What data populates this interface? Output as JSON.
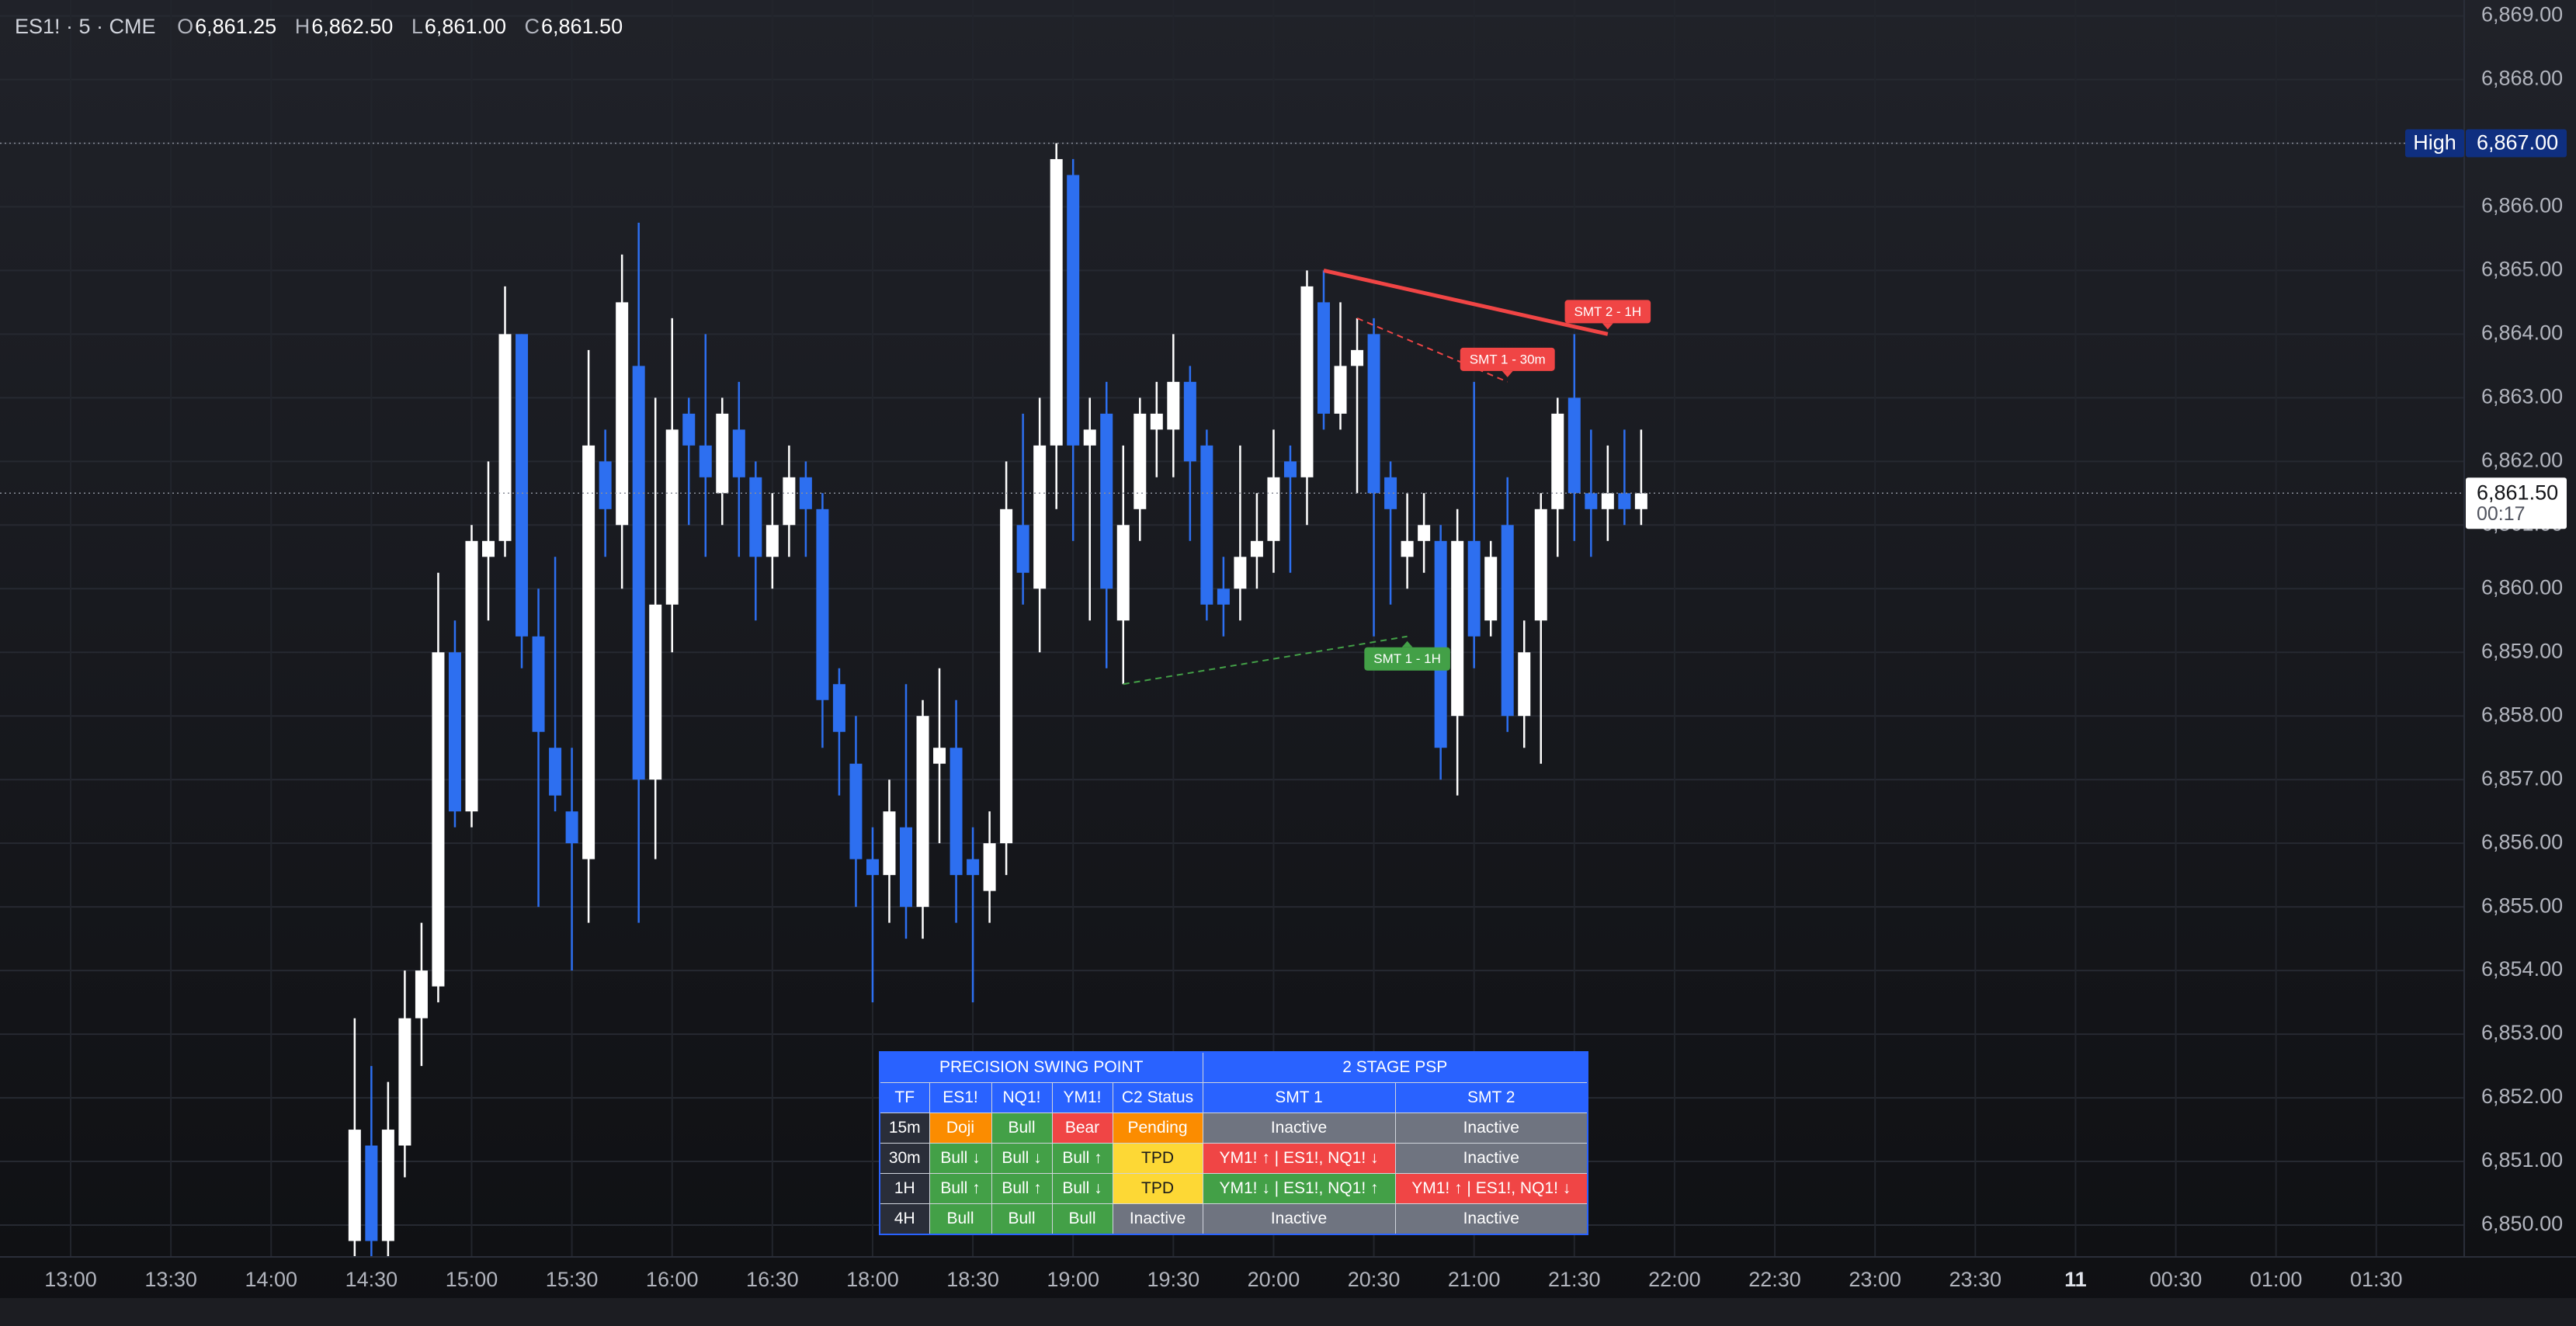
{
  "header": {
    "symbol": "ES1! · 5 · CME",
    "open_label": "O",
    "open": "6,861.25",
    "high_label": "H",
    "high": "6,862.50",
    "low_label": "L",
    "low": "6,861.00",
    "close_label": "C",
    "close": "6,861.50"
  },
  "chart_data": {
    "type": "candlestick",
    "categories": [
      "13:00",
      null,
      null,
      null,
      null,
      null,
      "13:30",
      null,
      null,
      null,
      null,
      null,
      "14:00",
      null,
      null,
      null,
      null,
      null,
      "14:30",
      null,
      null,
      null,
      null,
      null,
      "15:00",
      null,
      null,
      null,
      null,
      null,
      "15:30",
      null,
      null,
      null,
      null,
      null,
      "16:00",
      null,
      null,
      null,
      null,
      null,
      "16:30",
      null,
      null,
      null,
      null,
      null,
      "18:00",
      null,
      null,
      null,
      null,
      null,
      "18:30",
      null,
      null,
      null,
      null,
      null,
      "19:00",
      null,
      null,
      null,
      null,
      null,
      "19:30",
      null,
      null,
      null,
      null,
      null,
      "20:00",
      null,
      null,
      null,
      null,
      null,
      "20:30",
      null,
      null,
      null,
      null,
      null,
      "21:00",
      null,
      null,
      null,
      null,
      null,
      "21:30",
      null,
      null,
      null,
      null,
      null,
      "22:00",
      null,
      null,
      null,
      null,
      null,
      "22:30",
      null,
      null,
      null,
      null,
      null,
      "23:00",
      null,
      null,
      null,
      null,
      null,
      "23:30",
      null,
      null,
      null,
      null,
      null,
      "11",
      null,
      null,
      null,
      null,
      null,
      "00:30",
      null,
      null,
      null,
      null,
      null,
      "01:00",
      null,
      null,
      null,
      null,
      null,
      "01:30",
      null,
      null,
      null,
      null,
      null
    ],
    "open": [
      null,
      null,
      null,
      null,
      null,
      null,
      null,
      null,
      null,
      null,
      null,
      null,
      null,
      null,
      null,
      null,
      null,
      6849.75,
      6851.25,
      6849.75,
      6851.25,
      6853.25,
      6853.75,
      6859,
      6856.5,
      6860.5,
      6860.75,
      6864,
      6859.25,
      6857.5,
      6856.5,
      6855.75,
      6862,
      6861,
      6863.5,
      6857,
      6859.75,
      6862.75,
      6862.25,
      6861.5,
      6862.5,
      6861.75,
      6860.5,
      6861,
      6861.75,
      6861.25,
      6858.5,
      6857.25,
      6855.75,
      6855.5,
      6856.25,
      6855,
      6857.25,
      6857.5,
      6855.75,
      6855.25,
      6856,
      6861,
      6860,
      6862.25,
      6866.5,
      6862.25,
      6862.75,
      6859.5,
      6861.25,
      6862.5,
      6862.5,
      6863.25,
      6862.25,
      6860,
      6860,
      6860.5,
      6860.75,
      6862,
      6861.75,
      6864.5,
      6862.75,
      6863.5,
      6864,
      6861.75,
      6860.5,
      6860.75,
      6860.75,
      6858,
      6860.75,
      6859.5,
      6861,
      6858,
      6859.5,
      6861.25,
      6863,
      6861.5,
      6861.25,
      6861.5,
      6861.25,
      null,
      null,
      null,
      null,
      null,
      null,
      null,
      null,
      null,
      null,
      null,
      null,
      null,
      null,
      null,
      null,
      null,
      null,
      null,
      null,
      null,
      null,
      null,
      null,
      null,
      null,
      null,
      null,
      null,
      null,
      null,
      null,
      null,
      null,
      null,
      null,
      null,
      null,
      null,
      null,
      null,
      null,
      null,
      null,
      null,
      null,
      null,
      null,
      null
    ],
    "high": [
      null,
      null,
      null,
      null,
      null,
      null,
      null,
      null,
      null,
      null,
      null,
      null,
      null,
      null,
      null,
      null,
      null,
      6853.25,
      6852.5,
      6852.25,
      6854,
      6854.75,
      6860.25,
      6859.5,
      6861,
      6862,
      6864.75,
      6864,
      6860,
      6860.5,
      6857.5,
      6863.75,
      6862.5,
      6865.25,
      6865.75,
      6863,
      6864.25,
      6863,
      6864,
      6863,
      6863.25,
      6862,
      6861.5,
      6862.25,
      6862,
      6861.5,
      6858.75,
      6858,
      6856.25,
      6857,
      6858.5,
      6858.25,
      6858.75,
      6858.25,
      6856.25,
      6856.5,
      6862,
      6862.75,
      6863,
      6867,
      6866.75,
      6863,
      6863.25,
      6862.25,
      6863,
      6863.25,
      6864,
      6863.5,
      6862.5,
      6860.5,
      6862.25,
      6861.5,
      6862.5,
      6862.25,
      6865,
      6865,
      6864.5,
      6864.25,
      6864.25,
      6862,
      6861.5,
      6861.5,
      6861,
      6861.25,
      6863.25,
      6860.75,
      6861.75,
      6859.5,
      6861.5,
      6863,
      6864,
      6862.5,
      6862.25,
      6862.5,
      6862.5,
      null,
      null,
      null,
      null,
      null,
      null,
      null,
      null,
      null,
      null,
      null,
      null,
      null,
      null,
      null,
      null,
      null,
      null,
      null,
      null,
      null,
      null,
      null,
      null,
      null,
      null,
      null,
      null,
      null,
      null,
      null,
      null,
      null,
      null,
      null,
      null,
      null,
      null,
      null,
      null,
      null,
      null,
      null,
      null,
      null,
      null,
      null,
      null,
      null
    ],
    "low": [
      null,
      null,
      null,
      null,
      null,
      null,
      null,
      null,
      null,
      null,
      null,
      null,
      null,
      null,
      null,
      null,
      null,
      6849.5,
      6849.5,
      6849.5,
      6850.75,
      6852.5,
      6853.5,
      6856.25,
      6856.25,
      6859.5,
      6860.5,
      6858.75,
      6855,
      6856.5,
      6854,
      6854.75,
      6860.5,
      6860,
      6854.75,
      6855.75,
      6859,
      6861,
      6860.5,
      6861,
      6860.5,
      6859.5,
      6860,
      6860.5,
      6860.5,
      6857.5,
      6856.75,
      6855,
      6853.5,
      6854.75,
      6854.5,
      6854.5,
      6856,
      6854.75,
      6853.5,
      6854.75,
      6855.5,
      6859.75,
      6859,
      6861.25,
      6860.75,
      6859.5,
      6858.75,
      6858.5,
      6860.75,
      6861.75,
      6861.75,
      6860.75,
      6859.5,
      6859.25,
      6859.5,
      6860,
      6860.25,
      6860.25,
      6861,
      6862.5,
      6862.5,
      6861.5,
      6859.25,
      6859.75,
      6860,
      6860.25,
      6857,
      6856.75,
      6858.75,
      6859.25,
      6857.75,
      6857.5,
      6857.25,
      6860.5,
      6860.75,
      6860.5,
      6860.75,
      6861,
      6861,
      null,
      null,
      null,
      null,
      null,
      null,
      null,
      null,
      null,
      null,
      null,
      null,
      null,
      null,
      null,
      null,
      null,
      null,
      null,
      null,
      null,
      null,
      null,
      null,
      null,
      null,
      null,
      null,
      null,
      null,
      null,
      null,
      null,
      null,
      null,
      null,
      null,
      null,
      null,
      null,
      null,
      null,
      null,
      null,
      null,
      null,
      null,
      null,
      null
    ],
    "close": [
      null,
      null,
      null,
      null,
      null,
      null,
      null,
      null,
      null,
      null,
      null,
      null,
      null,
      null,
      null,
      null,
      null,
      6851.5,
      6849.75,
      6851.5,
      6853.25,
      6854,
      6859,
      6856.5,
      6860.75,
      6860.75,
      6864,
      6859.25,
      6857.75,
      6856.75,
      6856,
      6862.25,
      6861.25,
      6864.5,
      6857,
      6859.75,
      6862.5,
      6862.25,
      6861.75,
      6862.75,
      6861.75,
      6860.5,
      6861,
      6861.75,
      6861.25,
      6858.25,
      6857.75,
      6855.75,
      6855.5,
      6856.5,
      6855,
      6858,
      6857.5,
      6855.5,
      6855.5,
      6856,
      6861.25,
      6860.25,
      6862.25,
      6866.75,
      6862.25,
      6862.5,
      6860,
      6861,
      6862.75,
      6862.75,
      6863.25,
      6862,
      6859.75,
      6859.75,
      6860.5,
      6860.75,
      6861.75,
      6861.75,
      6864.75,
      6862.75,
      6863.5,
      6863.75,
      6861.5,
      6861.25,
      6860.75,
      6861,
      6857.5,
      6860.75,
      6859.25,
      6860.5,
      6858,
      6859,
      6861.25,
      6862.75,
      6861.5,
      6861.25,
      6861.5,
      6861.25,
      6861.5,
      null,
      null,
      null,
      null,
      null,
      null,
      null,
      null,
      null,
      null,
      null,
      null,
      null,
      null,
      null,
      null,
      null,
      null,
      null,
      null,
      null,
      null,
      null,
      null,
      null,
      null,
      null,
      null,
      null,
      null,
      null,
      null,
      null,
      null,
      null,
      null,
      null,
      null,
      null,
      null,
      null,
      null,
      null,
      null,
      null,
      null,
      null,
      null,
      null
    ],
    "up_color": "#ffffff",
    "down_color": "#2d6ff0",
    "ylim": [
      6849.5,
      6869.25
    ],
    "yticks": [
      {
        "value": 6850,
        "label": "6,850.00"
      },
      {
        "value": 6851,
        "label": "6,851.00"
      },
      {
        "value": 6852,
        "label": "6,852.00"
      },
      {
        "value": 6853,
        "label": "6,853.00"
      },
      {
        "value": 6854,
        "label": "6,854.00"
      },
      {
        "value": 6855,
        "label": "6,855.00"
      },
      {
        "value": 6856,
        "label": "6,856.00"
      },
      {
        "value": 6857,
        "label": "6,857.00"
      },
      {
        "value": 6858,
        "label": "6,858.00"
      },
      {
        "value": 6859,
        "label": "6,859.00"
      },
      {
        "value": 6860,
        "label": "6,860.00"
      },
      {
        "value": 6861,
        "label": "6,861.00"
      },
      {
        "value": 6862,
        "label": "6,862.00"
      },
      {
        "value": 6863,
        "label": "6,863.00"
      },
      {
        "value": 6864,
        "label": "6,864.00"
      },
      {
        "value": 6865,
        "label": "6,865.00"
      },
      {
        "value": 6866,
        "label": "6,866.00"
      },
      {
        "value": 6867,
        "label": "6,867.00"
      },
      {
        "value": 6868,
        "label": "6,868.00"
      },
      {
        "value": 6869,
        "label": "6,869.00"
      }
    ],
    "grid": true,
    "price_lines": [
      {
        "label": "High",
        "value": 6867,
        "value_label": "6,867.00",
        "color": "#0f2f80"
      },
      {
        "value": 6861.5,
        "value_label": "6,861.50",
        "countdown": "00:17",
        "color": "#ffffff"
      }
    ],
    "annotations": [
      {
        "label": "SMT 2 - 1H",
        "color": "#f04545",
        "dashed": false,
        "label_position": "above",
        "x": [
          "20:15",
          "21:40"
        ],
        "y": [
          6865,
          6864
        ]
      },
      {
        "label": "SMT 1 - 30m",
        "color": "#f04545",
        "dashed": true,
        "label_position": "above",
        "x": [
          "20:25",
          "21:10"
        ],
        "y": [
          6864.25,
          6863.25
        ]
      },
      {
        "label": "SMT 1 - 1H",
        "color": "#43a047",
        "dashed": true,
        "label_position": "below",
        "x": [
          "19:15",
          "20:40"
        ],
        "y": [
          6858.5,
          6859.25
        ]
      }
    ]
  },
  "table": {
    "groups": [
      "PRECISION SWING POINT",
      "2 STAGE PSP"
    ],
    "columns": [
      "TF",
      "ES1!",
      "NQ1!",
      "YM1!",
      "C2 Status",
      "SMT 1",
      "SMT 2"
    ],
    "rows": [
      [
        {
          "text": "15m",
          "color": "#2a2e39"
        },
        {
          "text": "Doji",
          "color": "#fb8c00"
        },
        {
          "text": "Bull",
          "color": "#43a047"
        },
        {
          "text": "Bear",
          "color": "#f04545"
        },
        {
          "text": "Pending",
          "color": "#fb8c00"
        },
        {
          "text": "Inactive",
          "color": "#6f7480"
        },
        {
          "text": "Inactive",
          "color": "#6f7480"
        }
      ],
      [
        {
          "text": "30m",
          "color": "#2a2e39"
        },
        {
          "text": "Bull ↓",
          "color": "#43a047"
        },
        {
          "text": "Bull ↓",
          "color": "#43a047"
        },
        {
          "text": "Bull ↑",
          "color": "#43a047"
        },
        {
          "text": "TPD",
          "color": "#fdd835",
          "text_color": "#1a1a1a"
        },
        {
          "text": "YM1! ↑  |  ES1!, NQ1! ↓",
          "color": "#f04545"
        },
        {
          "text": "Inactive",
          "color": "#6f7480"
        }
      ],
      [
        {
          "text": "1H",
          "color": "#2a2e39"
        },
        {
          "text": "Bull ↑",
          "color": "#43a047"
        },
        {
          "text": "Bull ↑",
          "color": "#43a047"
        },
        {
          "text": "Bull ↓",
          "color": "#43a047"
        },
        {
          "text": "TPD",
          "color": "#fdd835",
          "text_color": "#1a1a1a"
        },
        {
          "text": "YM1! ↓  |  ES1!, NQ1! ↑",
          "color": "#43a047"
        },
        {
          "text": "YM1! ↑  |  ES1!, NQ1! ↓",
          "color": "#f04545"
        }
      ],
      [
        {
          "text": "4H",
          "color": "#2a2e39"
        },
        {
          "text": "Bull",
          "color": "#43a047"
        },
        {
          "text": "Bull",
          "color": "#43a047"
        },
        {
          "text": "Bull",
          "color": "#43a047"
        },
        {
          "text": "Inactive",
          "color": "#6f7480"
        },
        {
          "text": "Inactive",
          "color": "#6f7480"
        },
        {
          "text": "Inactive",
          "color": "#6f7480"
        }
      ]
    ]
  }
}
